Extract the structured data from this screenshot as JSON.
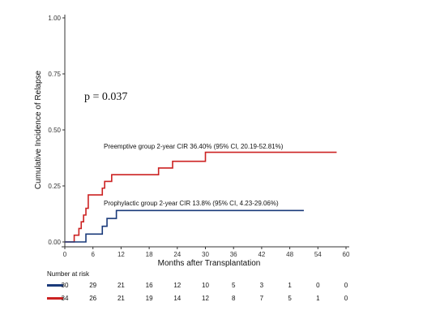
{
  "chart_data": {
    "type": "line",
    "title": "",
    "xlabel": "Months after Transplantation",
    "ylabel": "Cumulative Incidence of Relapse",
    "xlim": [
      0,
      60
    ],
    "ylim": [
      0,
      1
    ],
    "x_ticks": [
      "0",
      "6",
      "12",
      "18",
      "24",
      "30",
      "36",
      "42",
      "48",
      "54",
      "60"
    ],
    "y_ticks": [
      "0.00",
      "0.25",
      "0.50",
      "0.75",
      "1.00"
    ],
    "p_value_label": "p = 0.037",
    "series": [
      {
        "color": "#cc2222",
        "annotation": "Preemptive group 2-year CIR 36.40% (95% CI, 20.19-52.81%)",
        "steps": [
          [
            0,
            0
          ],
          [
            2,
            0.03
          ],
          [
            3,
            0.06
          ],
          [
            3.5,
            0.09
          ],
          [
            4,
            0.12
          ],
          [
            4.5,
            0.15
          ],
          [
            5,
            0.21
          ],
          [
            8,
            0.24
          ],
          [
            8.5,
            0.27
          ],
          [
            10,
            0.3
          ],
          [
            20,
            0.33
          ],
          [
            23,
            0.36
          ],
          [
            30,
            0.4
          ],
          [
            58,
            0.4
          ]
        ]
      },
      {
        "color": "#1a3a7a",
        "annotation": "Prophylactic group 2-year CIR 13.8% (95% CI, 4.23-29.06%)",
        "steps": [
          [
            0,
            0
          ],
          [
            2,
            0
          ],
          [
            4.5,
            0.035
          ],
          [
            8,
            0.07
          ],
          [
            9,
            0.105
          ],
          [
            11,
            0.14
          ],
          [
            51,
            0.14
          ]
        ]
      }
    ],
    "risk_table": {
      "title": "Number at risk",
      "rows": [
        {
          "color": "#1a3a7a",
          "values": [
            "30",
            "29",
            "21",
            "16",
            "12",
            "10",
            "5",
            "3",
            "1",
            "0",
            "0"
          ]
        },
        {
          "color": "#cc2222",
          "values": [
            "34",
            "26",
            "21",
            "19",
            "14",
            "12",
            "8",
            "7",
            "5",
            "1",
            "0"
          ]
        }
      ]
    }
  }
}
